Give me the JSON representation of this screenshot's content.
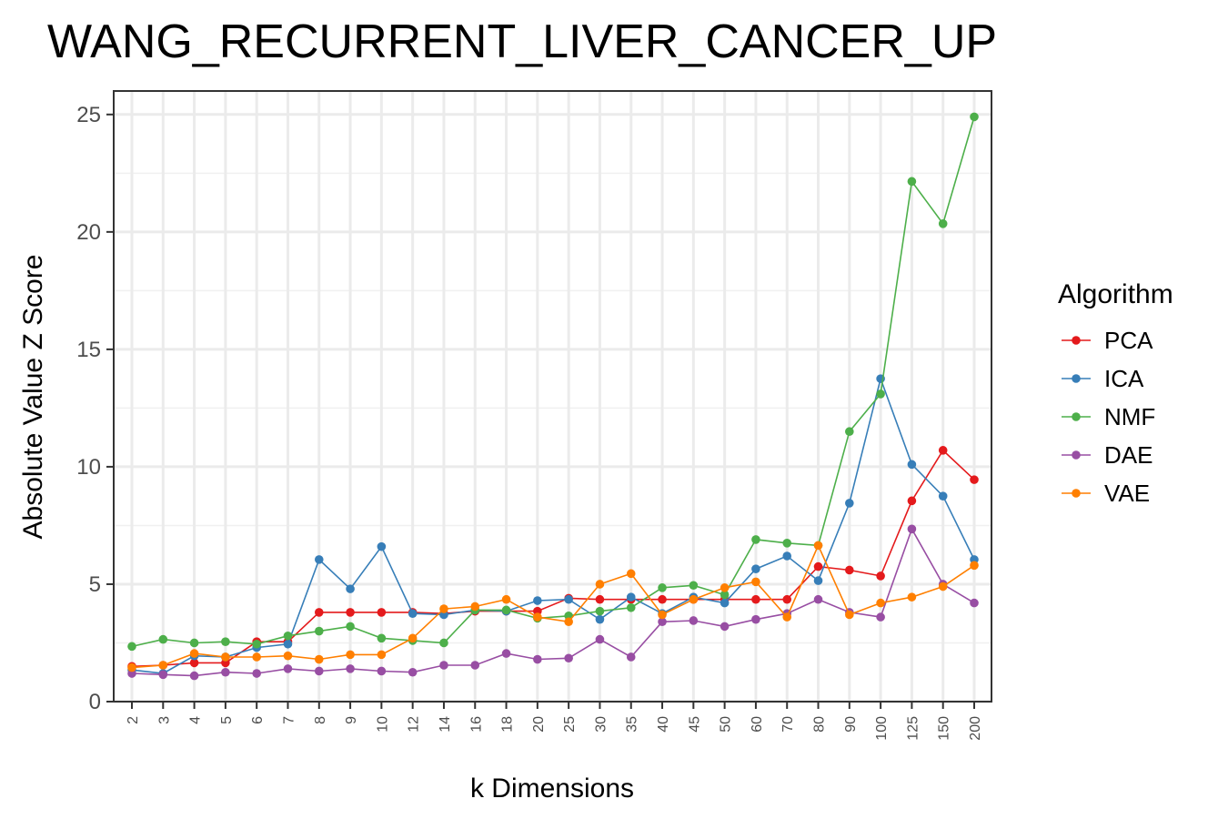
{
  "chart_data": {
    "type": "line",
    "title": "WANG_RECURRENT_LIVER_CANCER_UP",
    "xlabel": "k Dimensions",
    "ylabel": "Absolute Value Z Score",
    "ylim": [
      0,
      26
    ],
    "yticks": [
      0,
      5,
      10,
      15,
      20,
      25
    ],
    "grid": true,
    "legend_position": "right",
    "legend_title": "Algorithm",
    "categories": [
      "2",
      "3",
      "4",
      "5",
      "6",
      "7",
      "8",
      "9",
      "10",
      "12",
      "14",
      "16",
      "18",
      "20",
      "25",
      "30",
      "35",
      "40",
      "45",
      "50",
      "60",
      "70",
      "80",
      "90",
      "100",
      "125",
      "150",
      "200"
    ],
    "series": [
      {
        "name": "PCA",
        "color": "#e41a1c",
        "values": [
          1.5,
          1.55,
          1.65,
          1.65,
          2.55,
          2.55,
          3.8,
          3.8,
          3.8,
          3.8,
          3.75,
          3.85,
          3.85,
          3.85,
          4.4,
          4.35,
          4.35,
          4.35,
          4.35,
          4.35,
          4.35,
          4.35,
          5.75,
          5.6,
          5.35,
          8.55,
          10.7,
          9.45
        ]
      },
      {
        "name": "ICA",
        "color": "#377eb8",
        "values": [
          1.35,
          1.2,
          1.95,
          1.9,
          2.3,
          2.45,
          6.05,
          4.8,
          6.6,
          3.75,
          3.7,
          3.9,
          3.85,
          4.3,
          4.35,
          3.5,
          4.45,
          3.75,
          4.45,
          4.2,
          5.65,
          6.2,
          5.15,
          8.45,
          13.75,
          10.1,
          8.75,
          6.05
        ]
      },
      {
        "name": "NMF",
        "color": "#4daf4a",
        "values": [
          2.35,
          2.65,
          2.5,
          2.55,
          2.45,
          2.8,
          3.0,
          3.2,
          2.7,
          2.6,
          2.5,
          3.9,
          3.9,
          3.55,
          3.65,
          3.85,
          4.0,
          4.85,
          4.95,
          4.55,
          6.9,
          6.75,
          6.65,
          11.5,
          13.1,
          22.15,
          20.35,
          24.9
        ]
      },
      {
        "name": "DAE",
        "color": "#984ea3",
        "values": [
          1.2,
          1.15,
          1.1,
          1.25,
          1.2,
          1.4,
          1.3,
          1.4,
          1.3,
          1.25,
          1.55,
          1.55,
          2.05,
          1.8,
          1.85,
          2.65,
          1.9,
          3.4,
          3.45,
          3.2,
          3.5,
          3.75,
          4.35,
          3.8,
          3.6,
          7.35,
          5.0,
          4.2
        ]
      },
      {
        "name": "VAE",
        "color": "#ff7f00",
        "values": [
          1.45,
          1.55,
          2.05,
          1.9,
          1.9,
          1.95,
          1.8,
          2.0,
          2.0,
          2.7,
          3.95,
          4.05,
          4.35,
          3.6,
          3.4,
          5.0,
          5.45,
          3.7,
          4.35,
          4.85,
          5.1,
          3.6,
          6.65,
          3.7,
          4.2,
          4.45,
          4.9,
          5.8
        ]
      }
    ]
  }
}
